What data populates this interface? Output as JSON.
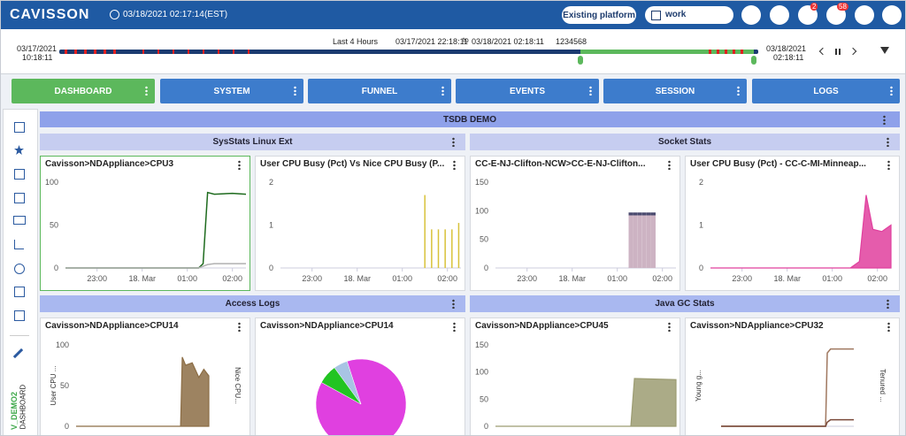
{
  "header": {
    "logo": "CAVISSON",
    "datetime": "03/18/2021 02:17:14",
    "timezone": "(EST)",
    "platform_button": "Existing platform",
    "search": "work",
    "badges": [
      "2",
      "58"
    ]
  },
  "timeline": {
    "start_date": "03/17/2021",
    "start_time": "10:18:11",
    "range": "Last 4 Hours",
    "from": "03/17/2021 22:18:11",
    "to_word": "to",
    "to": "03/18/2021 02:18:11",
    "id": "1234568",
    "end_date": "03/18/2021",
    "end_time": "02:18:11"
  },
  "tabs": [
    "DASHBOARD",
    "SYSTEM",
    "FUNNEL",
    "EVENTS",
    "SESSION",
    "LOGS"
  ],
  "sidebar": {
    "dashboard_name": "V_DEMO2",
    "dashboard_label": "DASHBOARD"
  },
  "dashboard": {
    "title": "TSDB DEMO",
    "groups": [
      "SysStats Linux Ext",
      "Socket Stats",
      "Access Logs",
      "Java GC Stats"
    ],
    "panels": [
      {
        "title": "Cavisson>NDAppliance>CPU3",
        "chart_data": {
          "type": "line",
          "xlim": [
            22.3,
            26.3
          ],
          "ylim": [
            0,
            100
          ],
          "yticks": [
            0,
            50,
            100
          ],
          "xticks": [
            {
              "value": 23,
              "label": "23:00"
            },
            {
              "value": 24,
              "label": "18. Mar"
            },
            {
              "value": 25,
              "label": "01:00"
            },
            {
              "value": 26,
              "label": "02:00"
            }
          ],
          "x": [
            22.3,
            25.25,
            25.35,
            25.45,
            25.6,
            26.0,
            26.3
          ],
          "series": [
            {
              "color": "#1e6b1e",
              "values": [
                0,
                0,
                5,
                88,
                86,
                87,
                86
              ]
            },
            {
              "color": "#b0b0b0",
              "values": [
                0,
                0,
                2,
                4,
                5,
                5,
                5
              ]
            }
          ]
        }
      },
      {
        "title": "User CPU Busy (Pct) Vs Nice CPU Busy (P...",
        "chart_data": {
          "type": "bar",
          "xlim": [
            22.3,
            26.3
          ],
          "ylim": [
            0,
            2
          ],
          "yticks": [
            0,
            1,
            2
          ],
          "xticks": [
            {
              "value": 23,
              "label": "23:00"
            },
            {
              "value": 24,
              "label": "18. Mar"
            },
            {
              "value": 25,
              "label": "01:00"
            },
            {
              "value": 26,
              "label": "02:00"
            }
          ],
          "x": [
            25.5,
            25.65,
            25.8,
            25.95,
            26.1,
            26.25
          ],
          "series": [
            {
              "color": "#d8c23a",
              "values": [
                1.7,
                0.9,
                0.9,
                0.9,
                0.9,
                1.05
              ]
            }
          ]
        }
      },
      {
        "title": "CC-E-NJ-Clifton-NCW>CC-E-NJ-Clifton...",
        "chart_data": {
          "type": "stacked_bar",
          "xlim": [
            22.3,
            26.3
          ],
          "ylim": [
            0,
            150
          ],
          "yticks": [
            0,
            50,
            100,
            150
          ],
          "xticks": [
            {
              "value": 23,
              "label": "23:00"
            },
            {
              "value": 24,
              "label": "18. Mar"
            },
            {
              "value": 25,
              "label": "01:00"
            },
            {
              "value": 26,
              "label": "02:00"
            }
          ],
          "x": [
            25.3,
            25.4,
            25.5,
            25.6,
            25.7,
            25.8
          ],
          "series": [
            {
              "color": "#cdb3c3",
              "values": [
                92,
                92,
                92,
                92,
                92,
                92
              ]
            },
            {
              "color": "#4a4a6e",
              "values": [
                5,
                5,
                5,
                5,
                5,
                5
              ]
            }
          ]
        }
      },
      {
        "title": "User CPU Busy (Pct) - CC-C-MI-Minneap...",
        "chart_data": {
          "type": "area",
          "xlim": [
            22.3,
            26.3
          ],
          "ylim": [
            0,
            2
          ],
          "yticks": [
            0,
            1,
            2
          ],
          "xticks": [
            {
              "value": 23,
              "label": "23:00"
            },
            {
              "value": 24,
              "label": "18. Mar"
            },
            {
              "value": 25,
              "label": "01:00"
            },
            {
              "value": 26,
              "label": "02:00"
            }
          ],
          "x": [
            22.3,
            25.4,
            25.6,
            25.75,
            25.9,
            26.1,
            26.3
          ],
          "series": [
            {
              "color": "#e0409e",
              "values": [
                0,
                0,
                0.15,
                1.7,
                0.9,
                0.85,
                1.0
              ]
            }
          ]
        }
      },
      {
        "title": "Cavisson>NDAppliance>CPU14",
        "chart_data": {
          "type": "area",
          "xlim": [
            22.3,
            26.3
          ],
          "ylim": [
            0,
            100
          ],
          "yticks": [
            0,
            50,
            100
          ],
          "y_label": "User CPU ...",
          "y2_label": "Nice CPU...",
          "x": [
            22.3,
            25.45,
            25.5,
            25.6,
            25.8,
            26.0,
            26.15,
            26.3
          ],
          "series": [
            {
              "color": "#8c6d45",
              "values": [
                0,
                0,
                85,
                75,
                78,
                60,
                70,
                62
              ]
            }
          ]
        }
      },
      {
        "title": "Cavisson>NDAppliance>CPU14",
        "chart_data": {
          "type": "pie",
          "series": [
            {
              "color": "#e040e0",
              "values": [
                88
              ]
            },
            {
              "color": "#22c422",
              "values": [
                7
              ]
            },
            {
              "color": "#a8c4e4",
              "values": [
                5
              ]
            }
          ]
        }
      },
      {
        "title": "Cavisson>NDAppliance>CPU45",
        "chart_data": {
          "type": "area",
          "xlim": [
            22.3,
            26.3
          ],
          "ylim": [
            0,
            150
          ],
          "yticks": [
            0,
            50,
            100,
            150
          ],
          "x": [
            22.3,
            25.3,
            25.38,
            26.3
          ],
          "series": [
            {
              "color": "#9c9c72",
              "values": [
                0,
                0,
                88,
                86
              ]
            }
          ]
        }
      },
      {
        "title": "Cavisson>NDAppliance>CPU32",
        "chart_data": {
          "type": "line",
          "xlim": [
            22.3,
            26.3
          ],
          "ylim": [
            0,
            100
          ],
          "y_label": "Young g...",
          "y2_label": "Tenured ...",
          "x": [
            22.3,
            25.45,
            25.5,
            25.6,
            26.3
          ],
          "series": [
            {
              "color": "#a07860",
              "values": [
                0,
                0,
                90,
                95,
                95
              ]
            },
            {
              "color": "#7a4a3a",
              "values": [
                0,
                0,
                5,
                8,
                8
              ]
            }
          ]
        }
      }
    ]
  }
}
